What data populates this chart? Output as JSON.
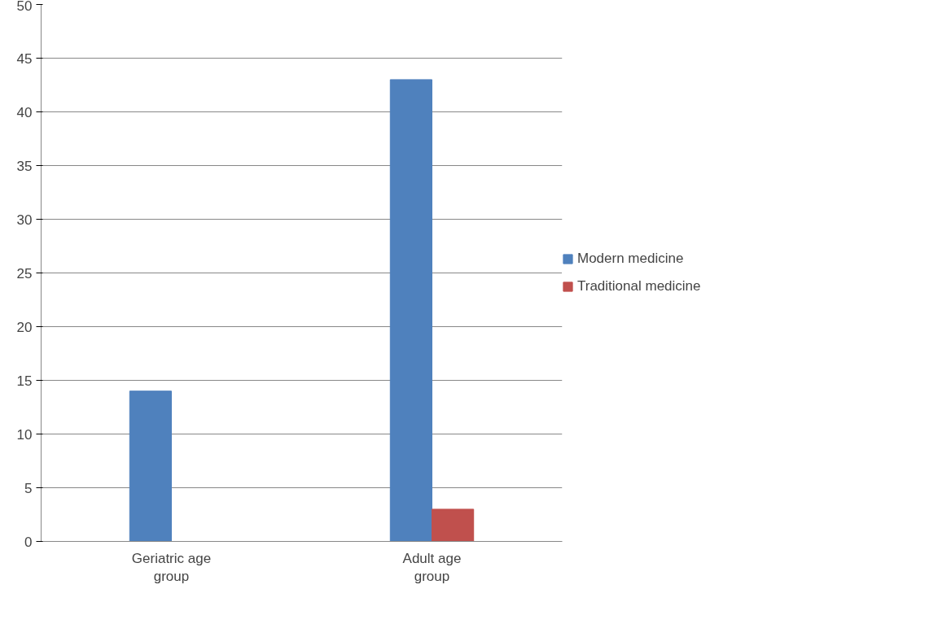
{
  "chart_data": {
    "type": "bar",
    "categories": [
      "Geriatric age group",
      "Adult age group"
    ],
    "series": [
      {
        "name": "Modern medicine",
        "color": "#4f81bd",
        "values": [
          14,
          43
        ]
      },
      {
        "name": "Traditional medicine",
        "color": "#c0504d",
        "values": [
          0,
          3
        ]
      }
    ],
    "ylim": [
      0,
      50
    ],
    "yticks": [
      0,
      5,
      10,
      15,
      20,
      25,
      30,
      35,
      40,
      45,
      50
    ],
    "grid": "y",
    "legend": "right"
  }
}
